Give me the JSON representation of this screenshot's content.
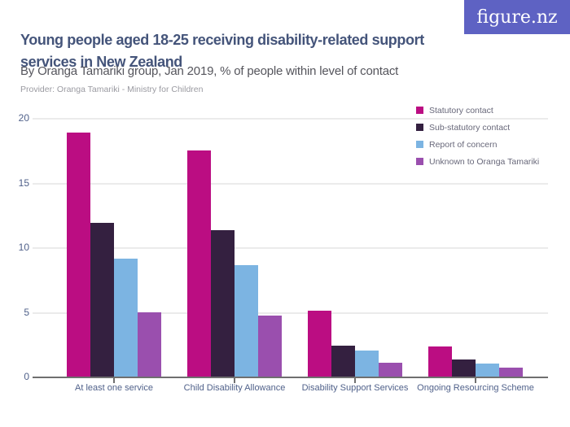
{
  "brand": {
    "logo_text": "figure.nz",
    "logo_bg_color": "#5e62c3",
    "logo_text_color": "#ffffff"
  },
  "header": {
    "title": "Young people aged 18-25 receiving disability-related support services in New Zealand",
    "subtitle": "By Oranga Tamariki group, Jan 2019, % of people within level of contact",
    "provider": "Provider: Oranga Tamariki - Ministry for Children"
  },
  "chart_data": {
    "type": "bar",
    "title": "Young people aged 18-25 receiving disability-related support services in New Zealand",
    "subtitle": "By Oranga Tamariki group, Jan 2019, % of people within level of contact",
    "categories": [
      "At least one service",
      "Child Disability Allowance",
      "Disability Support Services",
      "Ongoing Resourcing Scheme"
    ],
    "series": [
      {
        "name": "Statutory contact",
        "color": "#bb0d82",
        "values": [
          18.9,
          17.5,
          5.1,
          2.3
        ]
      },
      {
        "name": "Sub-statutory contact",
        "color": "#342040",
        "values": [
          11.9,
          11.3,
          2.4,
          1.3
        ]
      },
      {
        "name": "Report of concern",
        "color": "#7cb4e2",
        "values": [
          9.1,
          8.6,
          2.0,
          1.0
        ]
      },
      {
        "name": "Unknown to Oranga Tamariki",
        "color": "#9a4fae",
        "values": [
          5.0,
          4.7,
          1.1,
          0.7
        ]
      }
    ],
    "xlabel": "",
    "ylabel": "",
    "ylim": [
      0,
      20
    ],
    "yticks": [
      0,
      5,
      10,
      15,
      20
    ],
    "grid": true,
    "legend_position": "top-right"
  },
  "style": {
    "title_color": "#44547a",
    "subtitle_color": "#55555c",
    "provider_color": "#9a9aa1",
    "axis_label_color": "#50618a",
    "legend_text_color": "#68687a",
    "gridline_color": "#ebebeb",
    "axis_line_color": "#6f6f6f",
    "background_color": "#ffffff"
  }
}
